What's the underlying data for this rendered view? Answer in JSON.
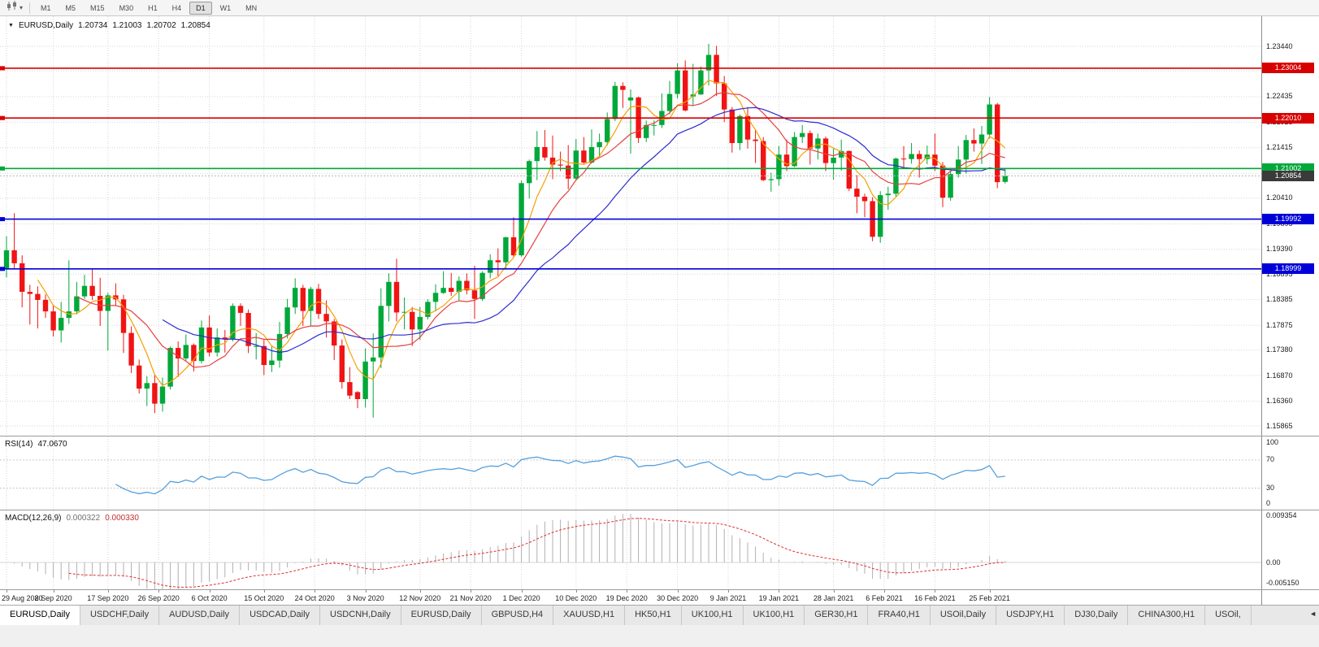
{
  "icons": {
    "title_marker": "▼",
    "toolbar_caret": "▾",
    "tab_scroll_left": "◄"
  },
  "toolbar": {
    "timeframes": [
      "M1",
      "M5",
      "M15",
      "M30",
      "H1",
      "H4",
      "D1",
      "W1",
      "MN"
    ],
    "active": "D1"
  },
  "title": {
    "symbol": "EURUSD,Daily",
    "open": "1.20734",
    "high": "1.21003",
    "low": "1.20702",
    "close": "1.20854"
  },
  "price_axis_labels": [
    "1.23440",
    "1.22950",
    "1.22435",
    "1.21925",
    "1.21415",
    "1.20905",
    "1.20410",
    "1.19895",
    "1.19390",
    "1.18895",
    "1.18385",
    "1.17875",
    "1.17380",
    "1.16870",
    "1.16360",
    "1.15865"
  ],
  "hlines": [
    {
      "price": 1.23004,
      "label": "1.23004",
      "color": "#d80000"
    },
    {
      "price": 1.2201,
      "label": "1.22010",
      "color": "#d80000"
    },
    {
      "price": 1.21002,
      "label": "1.21002",
      "color": "#00a83a"
    },
    {
      "price": 1.19992,
      "label": "1.19992",
      "color": "#0000d8"
    },
    {
      "price": 1.18999,
      "label": "1.18999",
      "color": "#0000d8"
    }
  ],
  "current_price_tag": {
    "price": 1.20854,
    "label": "1.20854",
    "color": "#3a3a3a"
  },
  "date_axis": [
    {
      "label": "29 Aug 2020",
      "index": 0
    },
    {
      "label": "8 Sep 2020",
      "index": 6
    },
    {
      "label": "17 Sep 2020",
      "index": 13
    },
    {
      "label": "26 Sep 2020",
      "index": 19.5
    },
    {
      "label": "6 Oct 2020",
      "index": 26
    },
    {
      "label": "15 Oct 2020",
      "index": 33
    },
    {
      "label": "24 Oct 2020",
      "index": 39.5
    },
    {
      "label": "3 Nov 2020",
      "index": 46
    },
    {
      "label": "12 Nov 2020",
      "index": 53
    },
    {
      "label": "21 Nov 2020",
      "index": 59.5
    },
    {
      "label": "1 Dec 2020",
      "index": 66
    },
    {
      "label": "10 Dec 2020",
      "index": 73
    },
    {
      "label": "19 Dec 2020",
      "index": 79.5
    },
    {
      "label": "30 Dec 2020",
      "index": 86
    },
    {
      "label": "9 Jan 2021",
      "index": 92.5
    },
    {
      "label": "19 Jan 2021",
      "index": 99
    },
    {
      "label": "28 Jan 2021",
      "index": 106
    },
    {
      "label": "6 Feb 2021",
      "index": 112.5
    },
    {
      "label": "16 Feb 2021",
      "index": 119
    },
    {
      "label": "25 Feb 2021",
      "index": 126
    }
  ],
  "chart_data": {
    "type": "candlestick",
    "symbol": "EURUSD",
    "timeframe": "Daily",
    "up_color": "#00a83a",
    "down_color": "#f01414",
    "axis_top": 1.2344,
    "axis_bottom": 1.15865,
    "moving_averages": [
      {
        "period": 5,
        "color": "#f5a000"
      },
      {
        "period": 10,
        "color": "#e84040"
      },
      {
        "period": 21,
        "color": "#2b2bd0"
      }
    ],
    "candles": [
      [
        1.19,
        1.1965,
        1.1883,
        1.1937
      ],
      [
        1.1937,
        1.2011,
        1.1899,
        1.1911
      ],
      [
        1.1911,
        1.1927,
        1.1823,
        1.1854
      ],
      [
        1.1854,
        1.1868,
        1.1789,
        1.185
      ],
      [
        1.185,
        1.1865,
        1.1781,
        1.1838
      ],
      [
        1.1838,
        1.1849,
        1.1802,
        1.1815
      ],
      [
        1.1815,
        1.1828,
        1.1765,
        1.1777
      ],
      [
        1.1777,
        1.1834,
        1.1753,
        1.1802
      ],
      [
        1.1802,
        1.1917,
        1.179,
        1.1815
      ],
      [
        1.1815,
        1.1874,
        1.1809,
        1.1845
      ],
      [
        1.1845,
        1.1888,
        1.184,
        1.1866
      ],
      [
        1.1866,
        1.1901,
        1.1838,
        1.1846
      ],
      [
        1.1846,
        1.1882,
        1.1786,
        1.1816
      ],
      [
        1.1816,
        1.1852,
        1.1737,
        1.1847
      ],
      [
        1.1847,
        1.1871,
        1.1826,
        1.1839
      ],
      [
        1.1839,
        1.1848,
        1.1732,
        1.1772
      ],
      [
        1.1772,
        1.1785,
        1.1692,
        1.1707
      ],
      [
        1.1707,
        1.1719,
        1.1651,
        1.1661
      ],
      [
        1.1661,
        1.1686,
        1.1626,
        1.1672
      ],
      [
        1.1672,
        1.1688,
        1.1612,
        1.1631
      ],
      [
        1.1631,
        1.1683,
        1.1615,
        1.1665
      ],
      [
        1.1665,
        1.1745,
        1.1659,
        1.1742
      ],
      [
        1.1742,
        1.1755,
        1.1684,
        1.1721
      ],
      [
        1.1721,
        1.1769,
        1.1717,
        1.1748
      ],
      [
        1.1748,
        1.1751,
        1.1695,
        1.1716
      ],
      [
        1.1716,
        1.1797,
        1.1711,
        1.1783
      ],
      [
        1.1783,
        1.1807,
        1.1725,
        1.1733
      ],
      [
        1.1733,
        1.1781,
        1.1725,
        1.1763
      ],
      [
        1.1763,
        1.1778,
        1.1733,
        1.176
      ],
      [
        1.176,
        1.1831,
        1.1755,
        1.1826
      ],
      [
        1.1826,
        1.1831,
        1.1786,
        1.1812
      ],
      [
        1.1812,
        1.1819,
        1.1732,
        1.1746
      ],
      [
        1.1746,
        1.1772,
        1.1719,
        1.1746
      ],
      [
        1.1746,
        1.1758,
        1.1688,
        1.1708
      ],
      [
        1.1708,
        1.1746,
        1.1694,
        1.1717
      ],
      [
        1.1717,
        1.1794,
        1.1703,
        1.177
      ],
      [
        1.177,
        1.184,
        1.1761,
        1.1823
      ],
      [
        1.1823,
        1.1881,
        1.181,
        1.1862
      ],
      [
        1.1862,
        1.1868,
        1.1786,
        1.1816
      ],
      [
        1.1816,
        1.1864,
        1.1787,
        1.186
      ],
      [
        1.186,
        1.187,
        1.18,
        1.181
      ],
      [
        1.181,
        1.1837,
        1.1763,
        1.1795
      ],
      [
        1.1795,
        1.18,
        1.1718,
        1.1747
      ],
      [
        1.1747,
        1.1759,
        1.1661,
        1.1674
      ],
      [
        1.1674,
        1.1704,
        1.164,
        1.1647
      ],
      [
        1.1654,
        1.1656,
        1.1622,
        1.164
      ],
      [
        1.164,
        1.1741,
        1.1623,
        1.1715
      ],
      [
        1.1715,
        1.1771,
        1.1603,
        1.1723
      ],
      [
        1.1723,
        1.1861,
        1.1702,
        1.1826
      ],
      [
        1.1826,
        1.1891,
        1.1795,
        1.1874
      ],
      [
        1.1874,
        1.192,
        1.1795,
        1.1813
      ],
      [
        1.1813,
        1.1843,
        1.1779,
        1.1814
      ],
      [
        1.1814,
        1.1824,
        1.1746,
        1.1779
      ],
      [
        1.1779,
        1.1824,
        1.1758,
        1.1804
      ],
      [
        1.1804,
        1.1839,
        1.1799,
        1.1834
      ],
      [
        1.1834,
        1.1869,
        1.1815,
        1.1852
      ],
      [
        1.1852,
        1.1895,
        1.185,
        1.1862
      ],
      [
        1.1862,
        1.1892,
        1.1846,
        1.1854
      ],
      [
        1.1854,
        1.1885,
        1.1837,
        1.1876
      ],
      [
        1.1876,
        1.1891,
        1.1849,
        1.1857
      ],
      [
        1.1857,
        1.1906,
        1.18,
        1.184
      ],
      [
        1.184,
        1.1895,
        1.1836,
        1.1892
      ],
      [
        1.1892,
        1.1929,
        1.1881,
        1.1917
      ],
      [
        1.1917,
        1.1941,
        1.1886,
        1.1913
      ],
      [
        1.1913,
        1.1964,
        1.1901,
        1.1963
      ],
      [
        1.1963,
        1.2003,
        1.1923,
        1.1927
      ],
      [
        1.1927,
        1.2076,
        1.1924,
        1.2071
      ],
      [
        1.2071,
        1.2118,
        1.204,
        1.2115
      ],
      [
        1.2115,
        1.2175,
        1.2077,
        1.2143
      ],
      [
        1.2143,
        1.2177,
        1.2116,
        1.2122
      ],
      [
        1.2122,
        1.2166,
        1.2079,
        1.2108
      ],
      [
        1.2108,
        1.2134,
        1.2095,
        1.2106
      ],
      [
        1.2106,
        1.2147,
        1.2059,
        1.208
      ],
      [
        1.208,
        1.2159,
        1.2076,
        1.2136
      ],
      [
        1.2136,
        1.2163,
        1.211,
        1.2112
      ],
      [
        1.2112,
        1.2178,
        1.211,
        1.2143
      ],
      [
        1.2143,
        1.217,
        1.2123,
        1.2153
      ],
      [
        1.2153,
        1.2212,
        1.2146,
        1.2199
      ],
      [
        1.2199,
        1.2273,
        1.2195,
        1.2265
      ],
      [
        1.2265,
        1.2272,
        1.2221,
        1.2257
      ],
      [
        1.2236,
        1.2258,
        1.213,
        1.2242
      ],
      [
        1.2242,
        1.2244,
        1.2151,
        1.2161
      ],
      [
        1.2161,
        1.2196,
        1.2153,
        1.2187
      ],
      [
        1.2187,
        1.2196,
        1.2166,
        1.2187
      ],
      [
        1.2187,
        1.225,
        1.2181,
        1.2215
      ],
      [
        1.2215,
        1.2275,
        1.2208,
        1.2249
      ],
      [
        1.2249,
        1.231,
        1.224,
        1.2296
      ],
      [
        1.2296,
        1.2316,
        1.2214,
        1.2216
      ],
      [
        1.2244,
        1.2309,
        1.2226,
        1.2248
      ],
      [
        1.2248,
        1.2304,
        1.2247,
        1.2296
      ],
      [
        1.2296,
        1.2349,
        1.2266,
        1.2327
      ],
      [
        1.2327,
        1.2345,
        1.2245,
        1.227
      ],
      [
        1.227,
        1.2285,
        1.2193,
        1.2218
      ],
      [
        1.2218,
        1.2223,
        1.2132,
        1.2151
      ],
      [
        1.2151,
        1.2208,
        1.2137,
        1.2205
      ],
      [
        1.2205,
        1.2223,
        1.214,
        1.2158
      ],
      [
        1.2158,
        1.2178,
        1.2111,
        1.2155
      ],
      [
        1.2155,
        1.2163,
        1.2075,
        1.2077
      ],
      [
        1.2077,
        1.2092,
        1.2054,
        1.2079
      ],
      [
        1.2079,
        1.2145,
        1.2066,
        1.2128
      ],
      [
        1.2128,
        1.2158,
        1.2095,
        1.2105
      ],
      [
        1.2105,
        1.2173,
        1.2103,
        1.2163
      ],
      [
        1.2163,
        1.2187,
        1.2151,
        1.2171
      ],
      [
        1.2171,
        1.2176,
        1.2108,
        1.214
      ],
      [
        1.214,
        1.217,
        1.2118,
        1.216
      ],
      [
        1.216,
        1.2164,
        1.2095,
        1.2111
      ],
      [
        1.2111,
        1.2142,
        1.2078,
        1.2122
      ],
      [
        1.2122,
        1.2158,
        1.2096,
        1.2135
      ],
      [
        1.2135,
        1.2136,
        1.2055,
        1.206
      ],
      [
        1.206,
        1.2087,
        1.2011,
        1.2044
      ],
      [
        1.2044,
        1.205,
        1.2003,
        1.2035
      ],
      [
        1.2035,
        1.2043,
        1.1955,
        1.1964
      ],
      [
        1.1964,
        1.2055,
        1.1952,
        1.2047
      ],
      [
        1.2047,
        1.2064,
        1.2018,
        1.205
      ],
      [
        1.205,
        1.2122,
        1.2043,
        1.212
      ],
      [
        1.212,
        1.2145,
        1.2102,
        1.2119
      ],
      [
        1.2119,
        1.2151,
        1.211,
        1.2129
      ],
      [
        1.2129,
        1.2136,
        1.2082,
        1.2119
      ],
      [
        1.2119,
        1.2146,
        1.2109,
        1.2128
      ],
      [
        1.2128,
        1.217,
        1.2095,
        1.2106
      ],
      [
        1.2106,
        1.2113,
        1.2023,
        1.2042
      ],
      [
        1.2042,
        1.2101,
        1.2036,
        1.2089
      ],
      [
        1.2089,
        1.2145,
        1.2082,
        1.2118
      ],
      [
        1.2118,
        1.2167,
        1.209,
        1.2157
      ],
      [
        1.2157,
        1.218,
        1.2134,
        1.215
      ],
      [
        1.215,
        1.2185,
        1.2109,
        1.2168
      ],
      [
        1.2168,
        1.2243,
        1.216,
        1.2228
      ],
      [
        1.2228,
        1.2231,
        1.2061,
        1.2073
      ],
      [
        1.20734,
        1.21003,
        1.20702,
        1.20854
      ]
    ]
  },
  "rsi_panel": {
    "label": "RSI(14)",
    "value": "47.0670",
    "period": 14,
    "levels": [
      "100",
      "70",
      "30",
      "0"
    ],
    "level_values": [
      100,
      70,
      30,
      0
    ],
    "line_color": "#56a0dd"
  },
  "macd_panel": {
    "label": "MACD(12,26,9)",
    "main_value": "0.000322",
    "signal_value": "0.000330",
    "fast": 12,
    "slow": 26,
    "signal": 9,
    "axis_labels": [
      "0.009354",
      "0.00",
      "-0.005150"
    ],
    "histogram_color": "#b0b0b0",
    "signal_color": "#e03030"
  },
  "tabs": {
    "active_index": 0,
    "items": [
      "EURUSD,Daily",
      "USDCHF,Daily",
      "AUDUSD,Daily",
      "USDCAD,Daily",
      "USDCNH,Daily",
      "EURUSD,Daily",
      "GBPUSD,H4",
      "XAUUSD,H1",
      "HK50,H1",
      "UK100,H1",
      "UK100,H1",
      "GER30,H1",
      "FRA40,H1",
      "USOil,Daily",
      "USDJPY,H1",
      "DJ30,Daily",
      "CHINA300,H1",
      "USOil,"
    ]
  }
}
